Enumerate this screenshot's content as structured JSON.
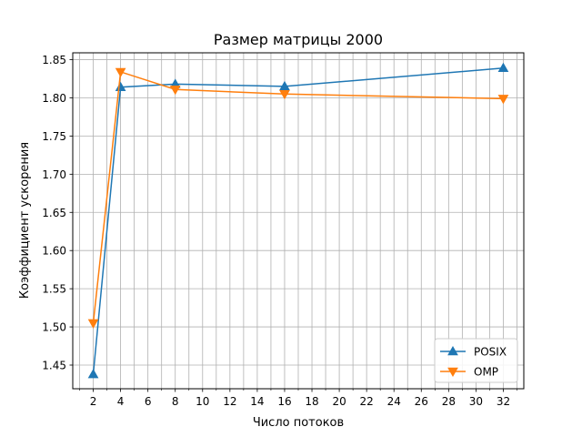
{
  "chart_data": {
    "type": "line",
    "title": "Размер матрицы 2000",
    "xlabel": "Число потоков",
    "ylabel": "Коэффициент ускорения",
    "xlim": [
      0.5,
      33.5
    ],
    "ylim": [
      1.419,
      1.859
    ],
    "x_ticks": [
      2,
      4,
      6,
      8,
      10,
      12,
      14,
      16,
      18,
      20,
      22,
      24,
      26,
      28,
      30,
      32
    ],
    "x_tick_labels": [
      "2",
      "4",
      "6",
      "8",
      "10",
      "12",
      "14",
      "16",
      "18",
      "20",
      "22",
      "24",
      "26",
      "28",
      "30",
      "32"
    ],
    "x_minor_ticks": [
      1,
      3,
      5,
      7,
      9,
      11,
      13,
      15,
      17,
      19,
      21,
      23,
      25,
      27,
      29,
      31,
      33
    ],
    "y_ticks": [
      1.45,
      1.5,
      1.55,
      1.6,
      1.65,
      1.7,
      1.75,
      1.8,
      1.85
    ],
    "y_tick_labels": [
      "1.45",
      "1.50",
      "1.55",
      "1.60",
      "1.65",
      "1.70",
      "1.75",
      "1.80",
      "1.85"
    ],
    "grid": true,
    "legend_position": "bottom-right",
    "series": [
      {
        "name": "POSIX",
        "color": "#1f77b4",
        "marker": "triangle-up",
        "x": [
          2,
          4,
          8,
          16,
          32
        ],
        "y": [
          1.438,
          1.814,
          1.818,
          1.815,
          1.839
        ]
      },
      {
        "name": "OMP",
        "color": "#ff7f0e",
        "marker": "triangle-down",
        "x": [
          2,
          4,
          8,
          16,
          32
        ],
        "y": [
          1.505,
          1.834,
          1.811,
          1.805,
          1.799
        ]
      }
    ]
  }
}
